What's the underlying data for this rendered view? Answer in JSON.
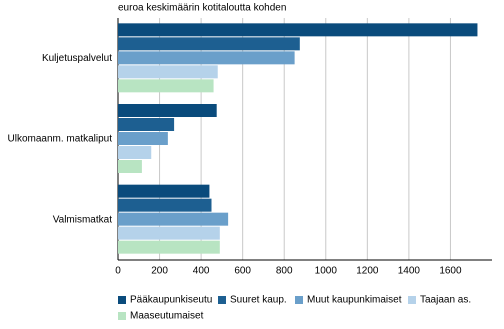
{
  "chart_data": {
    "type": "hbar",
    "subtitle": "euroa keskimäärin kotitaloutta kohden",
    "categories": [
      "Kuljetuspalvelut",
      "Ulkomaanm. matkaliput",
      "Valmismatkat"
    ],
    "series": [
      {
        "name": "Pääkaupunkiseutu",
        "color": "#0a4b7c",
        "values": [
          1730,
          475,
          440
        ]
      },
      {
        "name": "Suuret kaup.",
        "color": "#1d5f91",
        "values": [
          875,
          270,
          450
        ]
      },
      {
        "name": "Muut kaupunkimaiset",
        "color": "#6a9fca",
        "values": [
          850,
          240,
          530
        ]
      },
      {
        "name": "Taajaan as.",
        "color": "#b5d2ea",
        "values": [
          480,
          160,
          490
        ]
      },
      {
        "name": "Maaseutumaiset",
        "color": "#b8e4c2",
        "values": [
          460,
          115,
          490
        ]
      }
    ],
    "xlim": [
      0,
      1800
    ],
    "xticks": [
      0,
      200,
      400,
      600,
      800,
      1000,
      1200,
      1400,
      1600
    ],
    "grid": true
  }
}
